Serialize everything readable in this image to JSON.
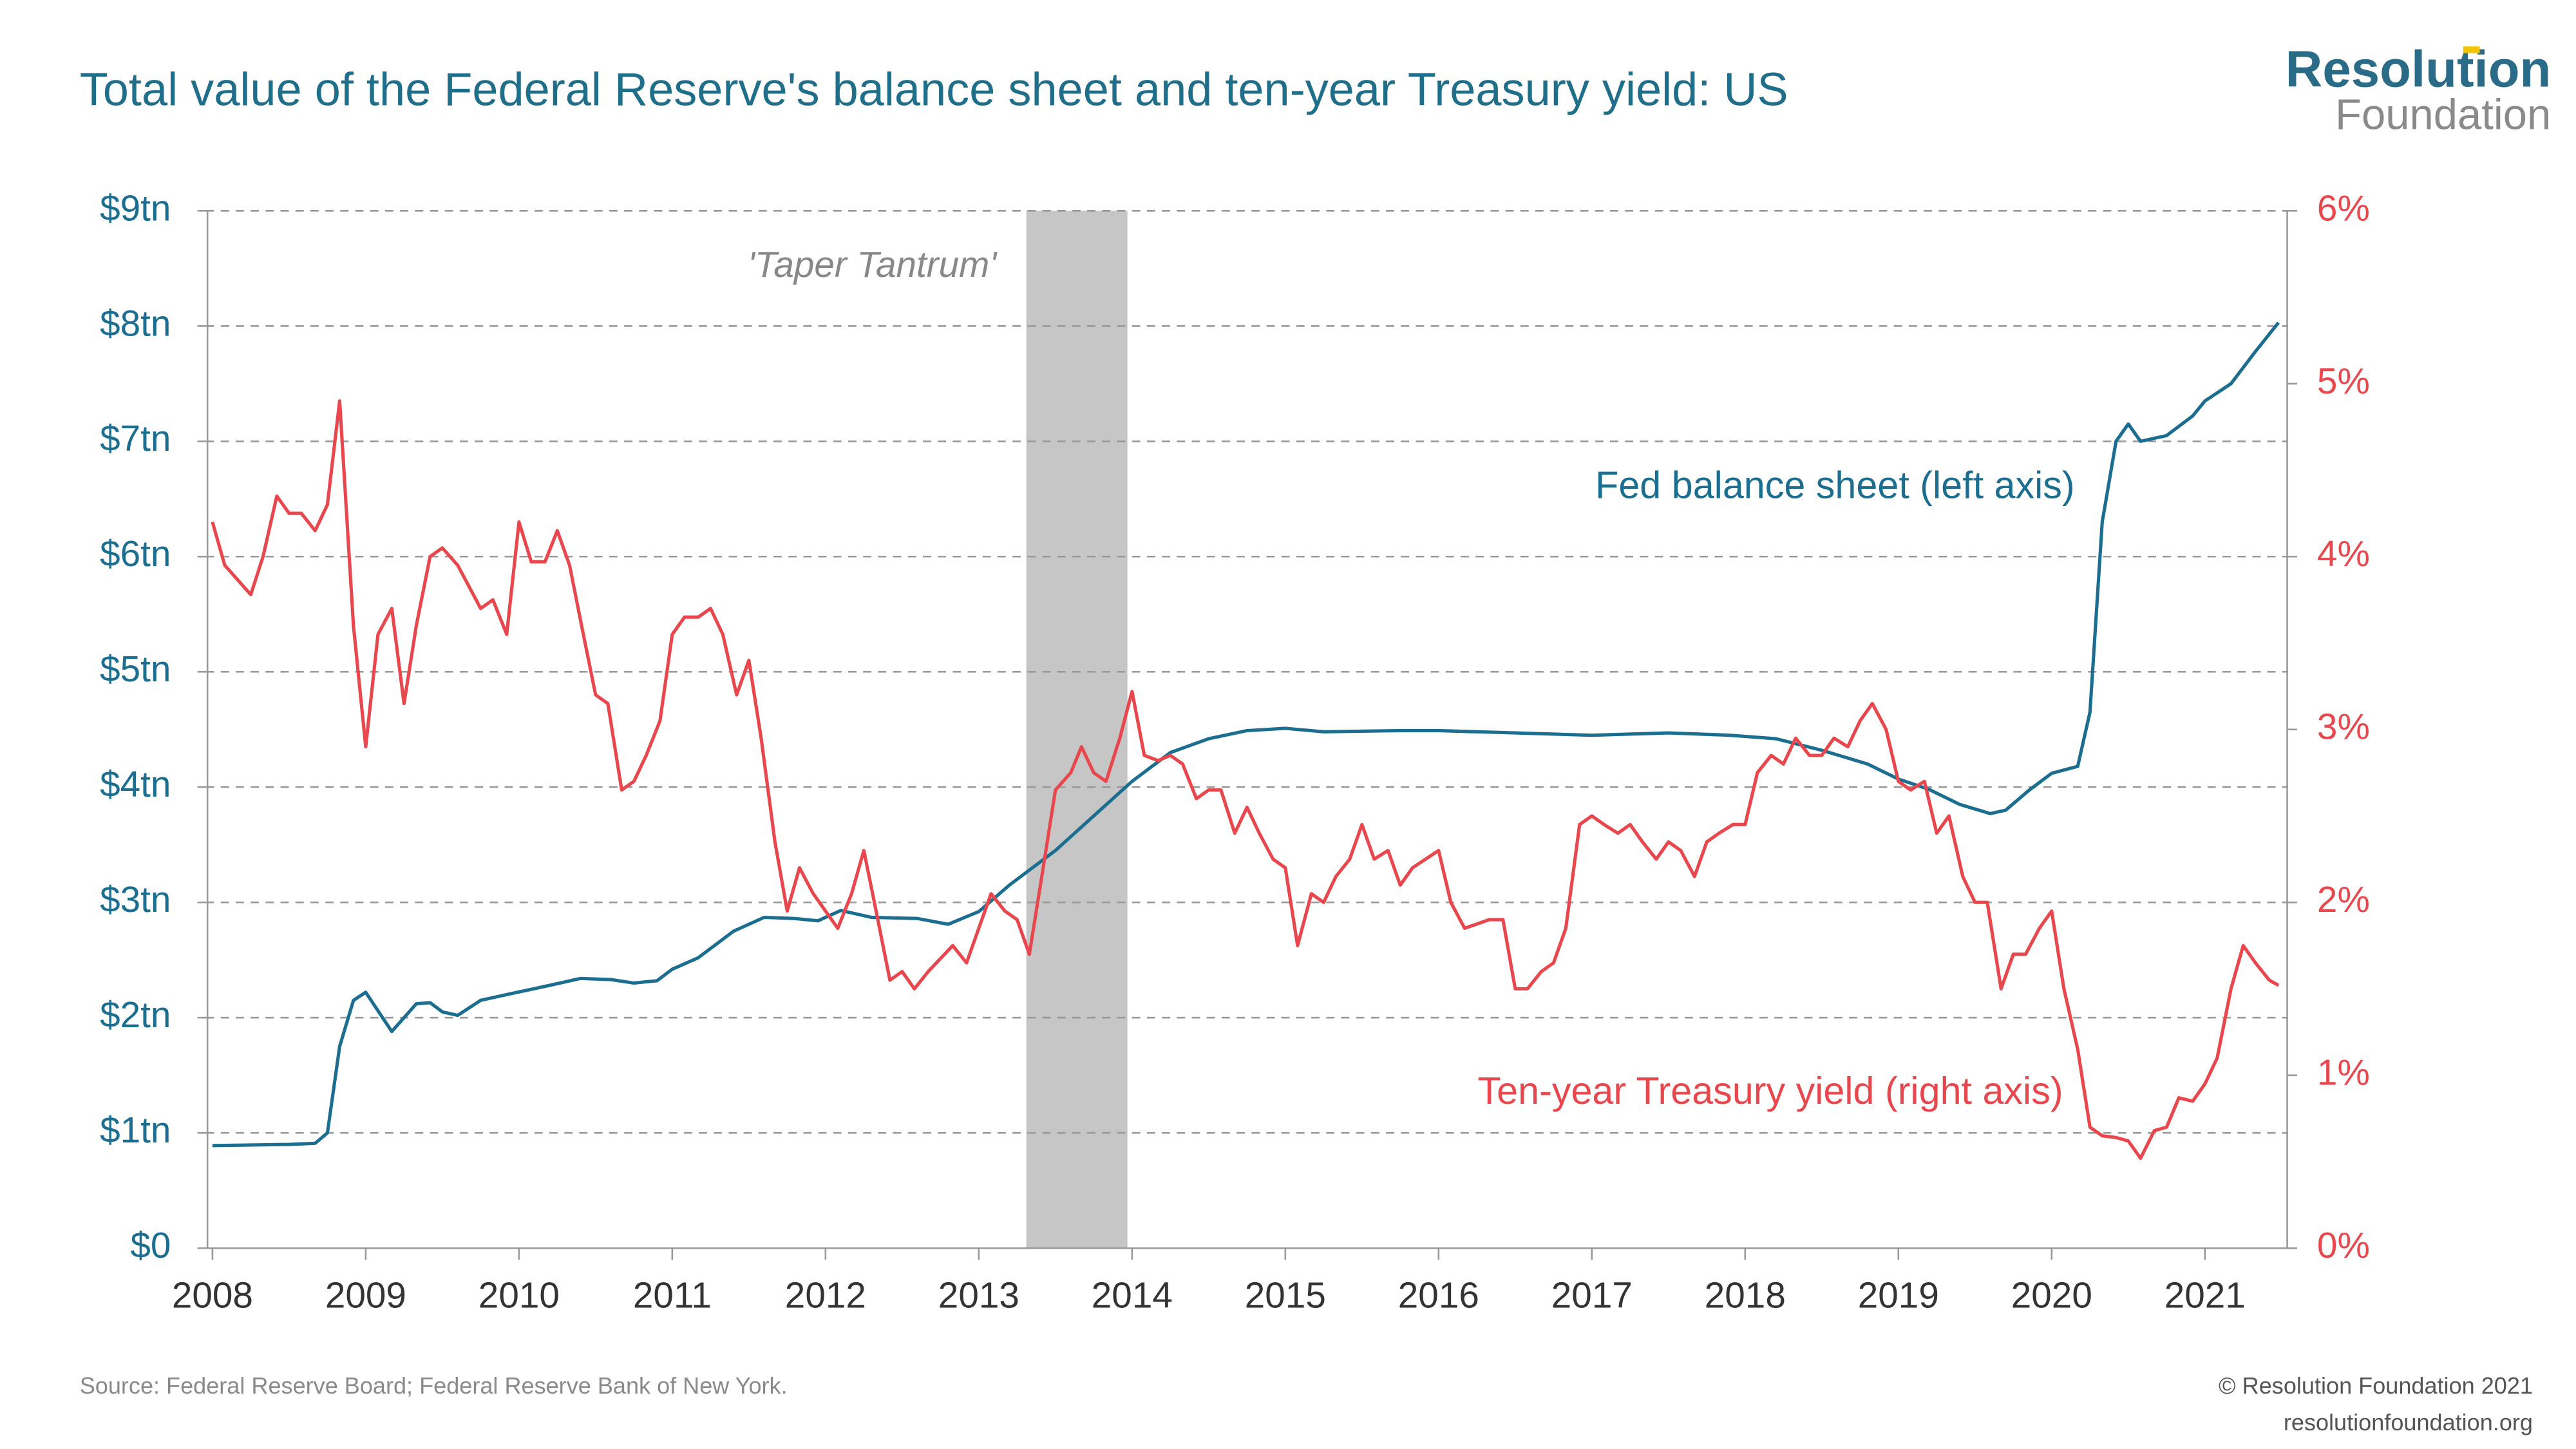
{
  "chart_data": {
    "type": "line",
    "title": "Total value of the Federal Reserve's balance sheet and ten-year Treasury yield: US",
    "source": "Source: Federal Reserve Board; Federal Reserve Bank of New York.",
    "xlim": [
      2008,
      2021.5
    ],
    "xticks": [
      2008,
      2009,
      2010,
      2011,
      2012,
      2013,
      2014,
      2015,
      2016,
      2017,
      2018,
      2019,
      2020,
      2021
    ],
    "ylim": [
      0,
      9
    ],
    "yticks": [
      {
        "value": 0,
        "label": "$0"
      },
      {
        "value": 1,
        "label": "$1tn"
      },
      {
        "value": 2,
        "label": "$2tn"
      },
      {
        "value": 3,
        "label": "$3tn"
      },
      {
        "value": 4,
        "label": "$4tn"
      },
      {
        "value": 5,
        "label": "$5tn"
      },
      {
        "value": 6,
        "label": "$6tn"
      },
      {
        "value": 7,
        "label": "$7tn"
      },
      {
        "value": 8,
        "label": "$8tn"
      },
      {
        "value": 9,
        "label": "$9tn"
      }
    ],
    "y2lim": [
      0,
      6
    ],
    "y2ticks": [
      {
        "value": 0,
        "label": "0%"
      },
      {
        "value": 1,
        "label": "1%"
      },
      {
        "value": 2,
        "label": "2%"
      },
      {
        "value": 3,
        "label": "3%"
      },
      {
        "value": 4,
        "label": "4%"
      },
      {
        "value": 5,
        "label": "5%"
      },
      {
        "value": 6,
        "label": "6%"
      }
    ],
    "grid": true,
    "shaded_periods": [
      {
        "label": "'Taper Tantrum'",
        "start": 2013.31,
        "end": 2013.97,
        "color": "#c6c6c6"
      }
    ],
    "series": [
      {
        "name": "Fed balance sheet (left axis)",
        "color": "#1b6e8f",
        "axis": "y",
        "x": [
          2008.0,
          2008.5,
          2008.67,
          2008.75,
          2008.83,
          2008.92,
          2009.0,
          2009.17,
          2009.33,
          2009.42,
          2009.5,
          2009.6,
          2009.75,
          2009.92,
          2010.2,
          2010.4,
          2010.6,
          2010.75,
          2010.9,
          2011.0,
          2011.17,
          2011.4,
          2011.6,
          2011.8,
          2011.95,
          2012.1,
          2012.3,
          2012.6,
          2012.8,
          2013.0,
          2013.2,
          2013.5,
          2013.75,
          2014.0,
          2014.25,
          2014.5,
          2014.75,
          2015.0,
          2015.25,
          2015.75,
          2016.0,
          2016.5,
          2017.0,
          2017.5,
          2017.9,
          2018.2,
          2018.5,
          2018.8,
          2019.0,
          2019.2,
          2019.4,
          2019.6,
          2019.7,
          2019.85,
          2020.0,
          2020.17,
          2020.25,
          2020.33,
          2020.42,
          2020.5,
          2020.58,
          2020.75,
          2020.92,
          2021.0,
          2021.17,
          2021.33,
          2021.48
        ],
        "values": [
          0.89,
          0.9,
          0.91,
          1.0,
          1.75,
          2.15,
          2.22,
          1.88,
          2.12,
          2.13,
          2.05,
          2.02,
          2.15,
          2.2,
          2.28,
          2.34,
          2.33,
          2.3,
          2.32,
          2.42,
          2.52,
          2.75,
          2.87,
          2.86,
          2.84,
          2.93,
          2.87,
          2.86,
          2.81,
          2.92,
          3.15,
          3.45,
          3.75,
          4.05,
          4.3,
          4.42,
          4.49,
          4.51,
          4.48,
          4.49,
          4.49,
          4.47,
          4.45,
          4.47,
          4.45,
          4.42,
          4.32,
          4.2,
          4.07,
          3.98,
          3.85,
          3.77,
          3.8,
          3.97,
          4.12,
          4.18,
          4.65,
          6.3,
          7.0,
          7.15,
          7.0,
          7.05,
          7.22,
          7.35,
          7.5,
          7.78,
          8.03
        ]
      },
      {
        "name": "Ten-year Treasury yield (right axis)",
        "color": "#e8474d",
        "axis": "y2",
        "x": [
          2008.0,
          2008.08,
          2008.25,
          2008.33,
          2008.42,
          2008.5,
          2008.58,
          2008.67,
          2008.75,
          2008.83,
          2008.92,
          2009.0,
          2009.08,
          2009.17,
          2009.25,
          2009.33,
          2009.42,
          2009.5,
          2009.6,
          2009.75,
          2009.83,
          2009.92,
          2010.0,
          2010.08,
          2010.17,
          2010.25,
          2010.33,
          2010.42,
          2010.5,
          2010.58,
          2010.67,
          2010.75,
          2010.83,
          2010.92,
          2011.0,
          2011.08,
          2011.17,
          2011.25,
          2011.33,
          2011.42,
          2011.5,
          2011.58,
          2011.67,
          2011.75,
          2011.83,
          2011.92,
          2012.0,
          2012.08,
          2012.17,
          2012.25,
          2012.33,
          2012.42,
          2012.5,
          2012.58,
          2012.67,
          2012.83,
          2012.92,
          2013.0,
          2013.08,
          2013.17,
          2013.25,
          2013.33,
          2013.42,
          2013.5,
          2013.6,
          2013.67,
          2013.75,
          2013.83,
          2013.92,
          2014.0,
          2014.08,
          2014.17,
          2014.25,
          2014.33,
          2014.42,
          2014.5,
          2014.58,
          2014.67,
          2014.75,
          2014.83,
          2014.92,
          2015.0,
          2015.08,
          2015.17,
          2015.25,
          2015.33,
          2015.42,
          2015.5,
          2015.58,
          2015.67,
          2015.75,
          2015.83,
          2016.0,
          2016.08,
          2016.17,
          2016.33,
          2016.42,
          2016.5,
          2016.58,
          2016.67,
          2016.75,
          2016.83,
          2016.92,
          2017.0,
          2017.08,
          2017.17,
          2017.25,
          2017.33,
          2017.42,
          2017.5,
          2017.58,
          2017.67,
          2017.75,
          2017.83,
          2017.92,
          2018.0,
          2018.08,
          2018.17,
          2018.25,
          2018.33,
          2018.42,
          2018.5,
          2018.58,
          2018.67,
          2018.75,
          2018.83,
          2018.92,
          2019.0,
          2019.08,
          2019.17,
          2019.25,
          2019.33,
          2019.42,
          2019.5,
          2019.58,
          2019.67,
          2019.75,
          2019.83,
          2019.92,
          2020.0,
          2020.08,
          2020.17,
          2020.25,
          2020.33,
          2020.42,
          2020.5,
          2020.58,
          2020.67,
          2020.75,
          2020.83,
          2020.92,
          2021.0,
          2021.08,
          2021.17,
          2021.25,
          2021.33,
          2021.42,
          2021.48
        ],
        "values": [
          4.2,
          3.95,
          3.78,
          4.0,
          4.35,
          4.25,
          4.25,
          4.15,
          4.3,
          4.9,
          3.6,
          2.9,
          3.55,
          3.7,
          3.15,
          3.6,
          4.0,
          4.05,
          3.95,
          3.7,
          3.75,
          3.55,
          4.2,
          3.97,
          3.97,
          4.15,
          3.95,
          3.55,
          3.2,
          3.15,
          2.65,
          2.7,
          2.85,
          3.05,
          3.55,
          3.65,
          3.65,
          3.7,
          3.55,
          3.2,
          3.4,
          2.95,
          2.35,
          1.95,
          2.2,
          2.05,
          1.95,
          1.85,
          2.05,
          2.3,
          1.95,
          1.55,
          1.6,
          1.5,
          1.6,
          1.75,
          1.65,
          1.85,
          2.05,
          1.95,
          1.9,
          1.7,
          2.2,
          2.65,
          2.75,
          2.9,
          2.75,
          2.7,
          2.95,
          3.22,
          2.85,
          2.82,
          2.85,
          2.8,
          2.6,
          2.65,
          2.65,
          2.4,
          2.55,
          2.4,
          2.25,
          2.2,
          1.75,
          2.05,
          2.0,
          2.15,
          2.25,
          2.45,
          2.25,
          2.3,
          2.1,
          2.2,
          2.3,
          2.0,
          1.85,
          1.9,
          1.9,
          1.5,
          1.5,
          1.6,
          1.65,
          1.85,
          2.45,
          2.5,
          2.45,
          2.4,
          2.45,
          2.35,
          2.25,
          2.35,
          2.3,
          2.15,
          2.35,
          2.4,
          2.45,
          2.45,
          2.75,
          2.85,
          2.8,
          2.95,
          2.85,
          2.85,
          2.95,
          2.9,
          3.05,
          3.15,
          3.0,
          2.7,
          2.65,
          2.7,
          2.4,
          2.5,
          2.15,
          2.0,
          2.0,
          1.5,
          1.7,
          1.7,
          1.85,
          1.95,
          1.5,
          1.15,
          0.7,
          0.65,
          0.64,
          0.62,
          0.52,
          0.68,
          0.7,
          0.87,
          0.85,
          0.95,
          1.1,
          1.5,
          1.75,
          1.65,
          1.55,
          1.52
        ]
      }
    ]
  },
  "branding": {
    "logo_top": "Resolution",
    "logo_bottom": "Foundation",
    "copyright": "© Resolution Foundation 2021",
    "website": "resolutionfoundation.org"
  }
}
